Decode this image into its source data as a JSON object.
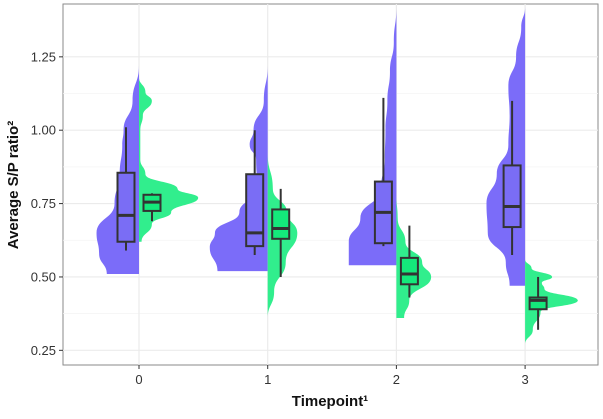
{
  "chart_data": {
    "type": "split-violin-boxplot",
    "xlabel": "Timepoint¹",
    "ylabel": "Average S/P ratio²",
    "categories": [
      "0",
      "1",
      "2",
      "3"
    ],
    "ylim": [
      0.2,
      1.43
    ],
    "yticks": [
      0.25,
      0.5,
      0.75,
      1.0,
      1.25
    ],
    "ytick_labels": [
      "0.25",
      "0.50",
      "0.75",
      "1.00",
      "1.25"
    ],
    "grid": true,
    "colors": {
      "group_a": "#7B6CF9",
      "group_b": "#31EE8D",
      "box_a": "#7A6DF5",
      "box_b": "#14E97B",
      "box_line": "#333333"
    },
    "series": [
      {
        "name": "group_a",
        "side": "left",
        "boxes": [
          {
            "lo": 0.59,
            "q1": 0.62,
            "med": 0.71,
            "q3": 0.855,
            "hi": 1.01
          },
          {
            "lo": 0.575,
            "q1": 0.605,
            "med": 0.65,
            "q3": 0.85,
            "hi": 1.0
          },
          {
            "lo": 0.605,
            "q1": 0.615,
            "med": 0.72,
            "q3": 0.825,
            "hi": 1.11
          },
          {
            "lo": 0.575,
            "q1": 0.67,
            "med": 0.74,
            "q3": 0.88,
            "hi": 1.1
          }
        ],
        "density": [
          [
            [
              0.51,
              0.25
            ],
            [
              0.58,
              0.31
            ],
            [
              0.65,
              0.33
            ],
            [
              0.75,
              0.19
            ],
            [
              0.85,
              0.15
            ],
            [
              0.95,
              0.13
            ],
            [
              1.0,
              0.12
            ],
            [
              1.1,
              0.05
            ],
            [
              1.22,
              0
            ]
          ],
          [
            [
              0.52,
              0.39
            ],
            [
              0.6,
              0.45
            ],
            [
              0.65,
              0.41
            ],
            [
              0.72,
              0.22
            ],
            [
              0.8,
              0.08
            ],
            [
              0.9,
              0.09
            ],
            [
              0.95,
              0.14
            ],
            [
              1.0,
              0.11
            ],
            [
              1.1,
              0.03
            ],
            [
              1.22,
              0
            ]
          ],
          [
            [
              0.54,
              0.37
            ],
            [
              0.62,
              0.37
            ],
            [
              0.7,
              0.28
            ],
            [
              0.8,
              0.12
            ],
            [
              0.9,
              0.09
            ],
            [
              1.0,
              0.085
            ],
            [
              1.1,
              0.07
            ],
            [
              1.2,
              0.05
            ],
            [
              1.3,
              0.02
            ],
            [
              1.42,
              0
            ]
          ],
          [
            [
              0.47,
              0.12
            ],
            [
              0.55,
              0.15
            ],
            [
              0.65,
              0.29
            ],
            [
              0.75,
              0.3
            ],
            [
              0.85,
              0.22
            ],
            [
              0.95,
              0.13
            ],
            [
              1.05,
              0.12
            ],
            [
              1.15,
              0.13
            ],
            [
              1.25,
              0.07
            ],
            [
              1.35,
              0.03
            ],
            [
              1.42,
              0
            ]
          ]
        ]
      },
      {
        "name": "group_b",
        "side": "right",
        "boxes": [
          {
            "lo": 0.69,
            "q1": 0.725,
            "med": 0.755,
            "q3": 0.78,
            "hi": 0.785
          },
          {
            "lo": 0.5,
            "q1": 0.63,
            "med": 0.665,
            "q3": 0.73,
            "hi": 0.8
          },
          {
            "lo": 0.43,
            "q1": 0.475,
            "med": 0.51,
            "q3": 0.565,
            "hi": 0.675
          },
          {
            "lo": 0.32,
            "q1": 0.39,
            "med": 0.42,
            "q3": 0.43,
            "hi": 0.5
          }
        ],
        "density": [
          [
            [
              0.62,
              0.02
            ],
            [
              0.68,
              0.1
            ],
            [
              0.72,
              0.25
            ],
            [
              0.77,
              0.46
            ],
            [
              0.8,
              0.3
            ],
            [
              0.85,
              0.05
            ],
            [
              0.9,
              0.01
            ],
            [
              1.0,
              0.01
            ],
            [
              1.05,
              0.03
            ],
            [
              1.1,
              0.1
            ],
            [
              1.13,
              0.05
            ],
            [
              1.18,
              0
            ]
          ],
          [
            [
              0.36,
              0
            ],
            [
              0.45,
              0.05
            ],
            [
              0.55,
              0.14
            ],
            [
              0.65,
              0.23
            ],
            [
              0.72,
              0.15
            ],
            [
              0.8,
              0.04
            ],
            [
              0.92,
              0
            ]
          ],
          [
            [
              0.36,
              0.06
            ],
            [
              0.42,
              0.1
            ],
            [
              0.5,
              0.27
            ],
            [
              0.55,
              0.2
            ],
            [
              0.62,
              0.07
            ],
            [
              0.7,
              0.01
            ],
            [
              0.78,
              0
            ]
          ],
          [
            [
              0.27,
              0
            ],
            [
              0.32,
              0.06
            ],
            [
              0.38,
              0.12
            ],
            [
              0.42,
              0.41
            ],
            [
              0.46,
              0.15
            ],
            [
              0.48,
              0.13
            ],
            [
              0.5,
              0.21
            ],
            [
              0.53,
              0.05
            ],
            [
              0.56,
              0
            ]
          ]
        ]
      }
    ]
  }
}
